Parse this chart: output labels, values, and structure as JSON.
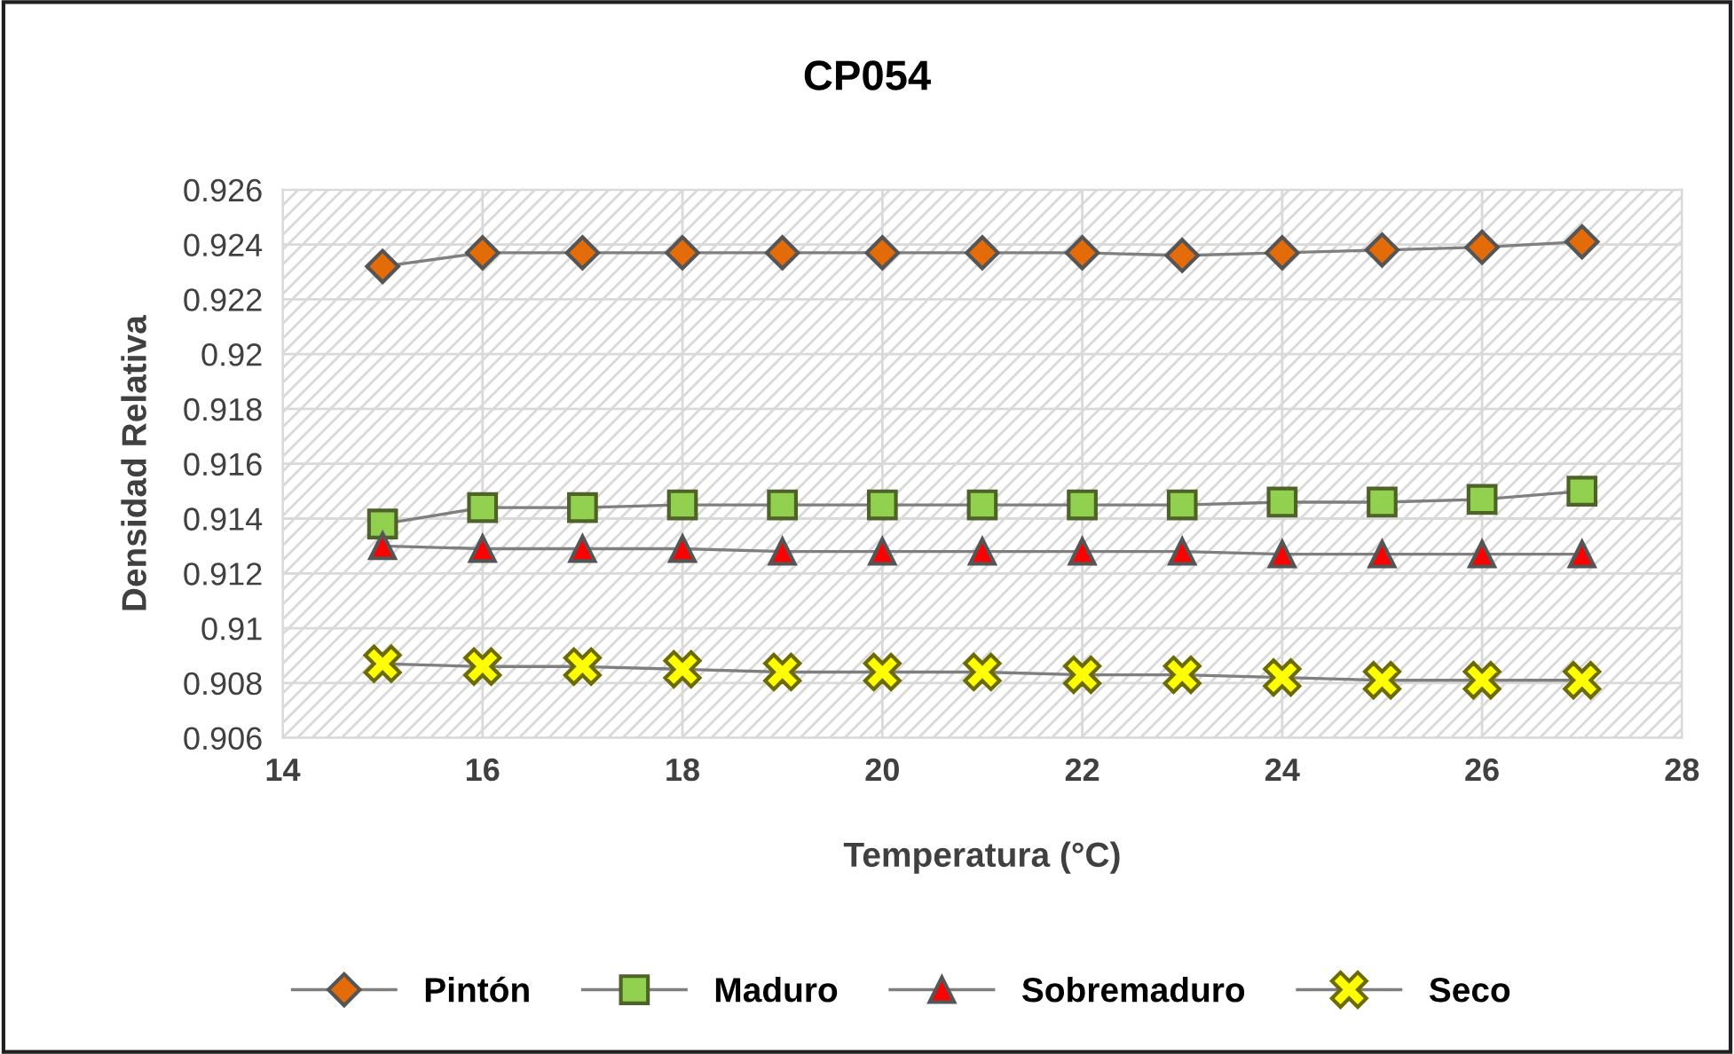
{
  "chart_data": {
    "type": "line",
    "title": "CP054",
    "xlabel": "Temperatura (°C)",
    "ylabel": "Densidad Relativa",
    "x": [
      15,
      16,
      17,
      18,
      19,
      20,
      21,
      22,
      23,
      24,
      25,
      26,
      27
    ],
    "xlim": [
      14,
      28
    ],
    "xticks": [
      14,
      16,
      18,
      20,
      22,
      24,
      26,
      28
    ],
    "ylim": [
      0.906,
      0.926
    ],
    "yticks": [
      0.906,
      0.908,
      0.91,
      0.912,
      0.914,
      0.916,
      0.918,
      0.92,
      0.922,
      0.924,
      0.926
    ],
    "grid": true,
    "legend": "bottom",
    "series": [
      {
        "name": "Pintón",
        "color": "#e36c09",
        "marker": "diamond",
        "values": [
          0.9232,
          0.9237,
          0.9237,
          0.9237,
          0.9237,
          0.9237,
          0.9237,
          0.9237,
          0.9236,
          0.9237,
          0.9238,
          0.9239,
          0.9241
        ]
      },
      {
        "name": "Maduro",
        "color": "#92d050",
        "marker": "square",
        "values": [
          0.9138,
          0.9144,
          0.9144,
          0.9145,
          0.9145,
          0.9145,
          0.9145,
          0.9145,
          0.9145,
          0.9146,
          0.9146,
          0.9147,
          0.915
        ]
      },
      {
        "name": "Sobremaduro",
        "color": "#ff0000",
        "marker": "triangle",
        "values": [
          0.913,
          0.9129,
          0.9129,
          0.9129,
          0.9128,
          0.9128,
          0.9128,
          0.9128,
          0.9128,
          0.9127,
          0.9127,
          0.9127,
          0.9127
        ]
      },
      {
        "name": "Seco",
        "color": "#ffff00",
        "marker": "cross",
        "values": [
          0.9087,
          0.9086,
          0.9086,
          0.9085,
          0.9084,
          0.9084,
          0.9084,
          0.9083,
          0.9083,
          0.9082,
          0.9081,
          0.9081,
          0.9081
        ]
      }
    ]
  }
}
